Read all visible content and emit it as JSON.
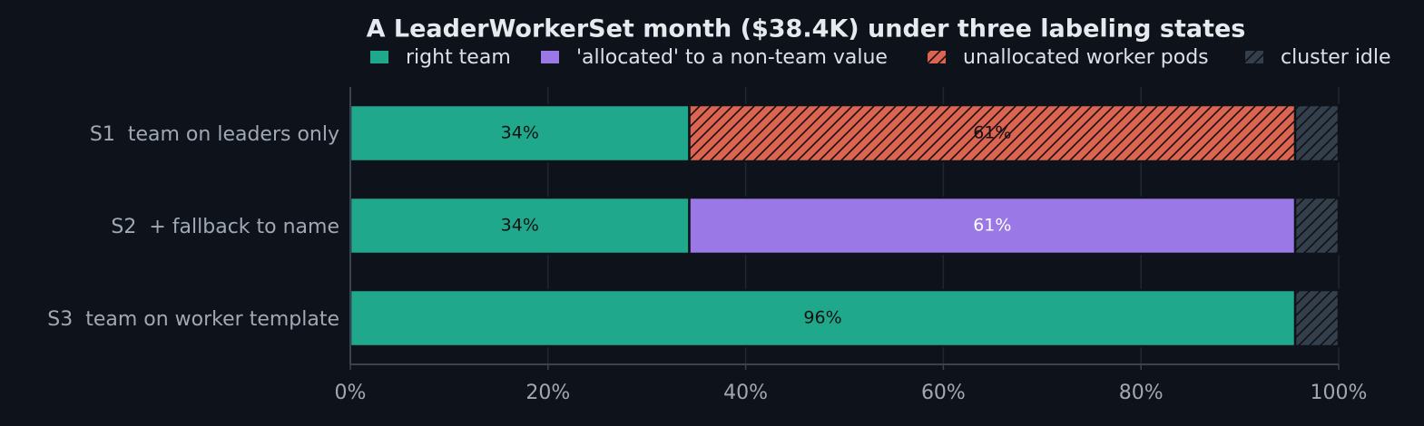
{
  "chart_data": {
    "type": "stacked-barh",
    "title": "A LeaderWorkerSet month ($38.4K) under three labeling states",
    "categories": [
      "S1  team on leaders only",
      "S2  + fallback to name",
      "S3  team on worker template"
    ],
    "series": [
      {
        "name": "right team",
        "color": "#1fa88c",
        "label_color": "#111111",
        "values": [
          34.3,
          34.3,
          95.6
        ],
        "value_labels": [
          "34%",
          "34%",
          "96%"
        ]
      },
      {
        "name": "'allocated' to a non-team value",
        "color": "#9a78e6",
        "label_color": "#ffffff",
        "values": [
          0,
          61.3,
          0
        ],
        "value_labels": [
          null,
          "61%",
          null
        ]
      },
      {
        "name": "unallocated worker pods",
        "color": "#dc6450",
        "hatch": true,
        "label_color": "#111111",
        "values": [
          61.3,
          0,
          0
        ],
        "value_labels": [
          "61%",
          null,
          null
        ]
      },
      {
        "name": "cluster idle",
        "color": "#343f4d",
        "hatch": true,
        "values": [
          4.4,
          4.4,
          4.4
        ]
      }
    ],
    "xlim": [
      0,
      100
    ],
    "xticks": [
      {
        "value": 0,
        "label": "0%"
      },
      {
        "value": 20,
        "label": "20%"
      },
      {
        "value": 40,
        "label": "40%"
      },
      {
        "value": 60,
        "label": "60%"
      },
      {
        "value": 80,
        "label": "80%"
      },
      {
        "value": 100,
        "label": "100%"
      }
    ],
    "grid": true
  }
}
